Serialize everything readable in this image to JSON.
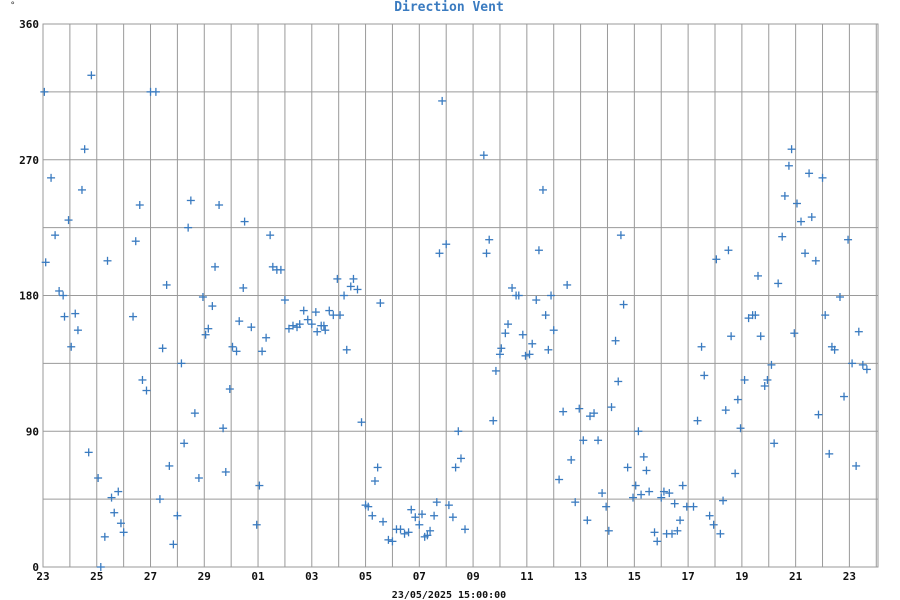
{
  "chart_data": {
    "type": "scatter",
    "title": "Direction Vent",
    "y_unit": "°",
    "xlabel": "23/05/2025 15:00:00",
    "ylim": [
      0,
      360
    ],
    "y_ticks": [
      0,
      90,
      180,
      270,
      360
    ],
    "x_ticks": [
      "23",
      "25",
      "27",
      "29",
      "01",
      "03",
      "05",
      "07",
      "09",
      "11",
      "13",
      "15",
      "17",
      "19",
      "21",
      "23"
    ],
    "grid": true,
    "marker": "+",
    "color": "#3a7bc0",
    "x_day_offsets": [
      0,
      2,
      4,
      6,
      8,
      10,
      12,
      14,
      16,
      18,
      20,
      22,
      24,
      26,
      28,
      30
    ],
    "x_range_days": [
      0,
      31.2
    ],
    "points": [
      [
        0.05,
        315
      ],
      [
        0.1,
        202
      ],
      [
        0.3,
        258
      ],
      [
        0.45,
        220
      ],
      [
        0.6,
        183
      ],
      [
        0.75,
        180
      ],
      [
        0.8,
        166
      ],
      [
        0.95,
        230
      ],
      [
        1.05,
        146
      ],
      [
        1.2,
        168
      ],
      [
        1.3,
        157
      ],
      [
        1.45,
        250
      ],
      [
        1.55,
        277
      ],
      [
        1.7,
        76
      ],
      [
        1.8,
        326
      ],
      [
        2.05,
        59
      ],
      [
        2.15,
        0
      ],
      [
        2.3,
        20
      ],
      [
        2.4,
        203
      ],
      [
        2.55,
        46
      ],
      [
        2.65,
        36
      ],
      [
        2.8,
        50
      ],
      [
        2.9,
        29
      ],
      [
        3.0,
        23
      ],
      [
        3.35,
        166
      ],
      [
        3.45,
        216
      ],
      [
        3.6,
        240
      ],
      [
        3.7,
        124
      ],
      [
        3.85,
        117
      ],
      [
        4.0,
        315
      ],
      [
        4.2,
        315
      ],
      [
        4.35,
        45
      ],
      [
        4.45,
        145
      ],
      [
        4.6,
        187
      ],
      [
        4.7,
        67
      ],
      [
        4.85,
        15
      ],
      [
        5.0,
        34
      ],
      [
        5.15,
        135
      ],
      [
        5.25,
        82
      ],
      [
        5.4,
        225
      ],
      [
        5.5,
        243
      ],
      [
        5.65,
        102
      ],
      [
        5.8,
        59
      ],
      [
        5.95,
        179
      ],
      [
        6.05,
        154
      ],
      [
        6.15,
        158
      ],
      [
        6.3,
        173
      ],
      [
        6.4,
        199
      ],
      [
        6.55,
        240
      ],
      [
        6.7,
        92
      ],
      [
        6.8,
        63
      ],
      [
        6.95,
        118
      ],
      [
        7.05,
        146
      ],
      [
        7.2,
        143
      ],
      [
        7.3,
        163
      ],
      [
        7.45,
        185
      ],
      [
        7.5,
        229
      ],
      [
        7.75,
        159
      ],
      [
        7.95,
        28
      ],
      [
        8.05,
        54
      ],
      [
        8.15,
        143
      ],
      [
        8.3,
        152
      ],
      [
        8.45,
        220
      ],
      [
        8.55,
        199
      ],
      [
        8.7,
        197
      ],
      [
        8.85,
        197
      ],
      [
        9.0,
        177
      ],
      [
        9.15,
        158
      ],
      [
        9.3,
        160
      ],
      [
        9.45,
        159
      ],
      [
        9.55,
        161
      ],
      [
        9.7,
        170
      ],
      [
        9.85,
        164
      ],
      [
        10.0,
        161
      ],
      [
        10.15,
        169
      ],
      [
        10.2,
        156
      ],
      [
        10.35,
        160
      ],
      [
        10.45,
        160
      ],
      [
        10.5,
        157
      ],
      [
        10.65,
        170
      ],
      [
        10.8,
        167
      ],
      [
        10.95,
        191
      ],
      [
        11.05,
        167
      ],
      [
        11.2,
        180
      ],
      [
        11.3,
        144
      ],
      [
        11.45,
        186
      ],
      [
        11.55,
        191
      ],
      [
        11.7,
        184
      ],
      [
        11.85,
        96
      ],
      [
        12.0,
        41
      ],
      [
        12.1,
        40
      ],
      [
        12.25,
        34
      ],
      [
        12.35,
        57
      ],
      [
        12.45,
        66
      ],
      [
        12.55,
        175
      ],
      [
        12.65,
        30
      ],
      [
        12.85,
        18
      ],
      [
        13.0,
        17
      ],
      [
        13.15,
        25
      ],
      [
        13.3,
        25
      ],
      [
        13.45,
        22
      ],
      [
        13.6,
        23
      ],
      [
        13.7,
        38
      ],
      [
        13.85,
        33
      ],
      [
        14.0,
        28
      ],
      [
        14.1,
        35
      ],
      [
        14.2,
        20
      ],
      [
        14.3,
        21
      ],
      [
        14.4,
        24
      ],
      [
        14.55,
        34
      ],
      [
        14.65,
        43
      ],
      [
        14.75,
        208
      ],
      [
        14.85,
        309
      ],
      [
        15.0,
        214
      ],
      [
        15.1,
        41
      ],
      [
        15.25,
        33
      ],
      [
        15.35,
        66
      ],
      [
        15.45,
        90
      ],
      [
        15.55,
        72
      ],
      [
        15.7,
        25
      ],
      [
        16.4,
        273
      ],
      [
        16.5,
        208
      ],
      [
        16.6,
        217
      ],
      [
        16.75,
        97
      ],
      [
        16.85,
        130
      ],
      [
        17.0,
        141
      ],
      [
        17.05,
        145
      ],
      [
        17.2,
        155
      ],
      [
        17.3,
        161
      ],
      [
        17.45,
        185
      ],
      [
        17.6,
        180
      ],
      [
        17.7,
        180
      ],
      [
        17.85,
        154
      ],
      [
        17.95,
        140
      ],
      [
        18.1,
        141
      ],
      [
        18.2,
        148
      ],
      [
        18.35,
        177
      ],
      [
        18.45,
        210
      ],
      [
        18.6,
        250
      ],
      [
        18.7,
        167
      ],
      [
        18.8,
        144
      ],
      [
        18.9,
        180
      ],
      [
        19.0,
        157
      ],
      [
        19.2,
        58
      ],
      [
        19.35,
        103
      ],
      [
        19.5,
        187
      ],
      [
        19.65,
        71
      ],
      [
        19.8,
        43
      ],
      [
        19.95,
        105
      ],
      [
        20.1,
        84
      ],
      [
        20.25,
        31
      ],
      [
        20.35,
        100
      ],
      [
        20.5,
        102
      ],
      [
        20.65,
        84
      ],
      [
        20.8,
        49
      ],
      [
        20.95,
        40
      ],
      [
        21.05,
        24
      ],
      [
        21.15,
        106
      ],
      [
        21.3,
        150
      ],
      [
        21.4,
        123
      ],
      [
        21.5,
        220
      ],
      [
        21.6,
        174
      ],
      [
        21.75,
        66
      ],
      [
        21.95,
        46
      ],
      [
        22.05,
        54
      ],
      [
        22.15,
        90
      ],
      [
        22.25,
        48
      ],
      [
        22.35,
        73
      ],
      [
        22.45,
        64
      ],
      [
        22.55,
        50
      ],
      [
        22.75,
        23
      ],
      [
        22.85,
        17
      ],
      [
        23.0,
        46
      ],
      [
        23.1,
        50
      ],
      [
        23.2,
        22
      ],
      [
        23.3,
        49
      ],
      [
        23.4,
        22
      ],
      [
        23.5,
        42
      ],
      [
        23.6,
        24
      ],
      [
        23.7,
        31
      ],
      [
        23.8,
        54
      ],
      [
        23.95,
        40
      ],
      [
        24.2,
        40
      ],
      [
        24.35,
        97
      ],
      [
        24.5,
        146
      ],
      [
        24.6,
        127
      ],
      [
        24.8,
        34
      ],
      [
        24.95,
        28
      ],
      [
        25.05,
        204
      ],
      [
        25.2,
        22
      ],
      [
        25.3,
        44
      ],
      [
        25.4,
        104
      ],
      [
        25.5,
        210
      ],
      [
        25.6,
        153
      ],
      [
        25.75,
        62
      ],
      [
        25.85,
        111
      ],
      [
        25.95,
        92
      ],
      [
        26.1,
        124
      ],
      [
        26.25,
        165
      ],
      [
        26.4,
        167
      ],
      [
        26.5,
        167
      ],
      [
        26.6,
        193
      ],
      [
        26.7,
        153
      ],
      [
        26.85,
        120
      ],
      [
        26.95,
        124
      ],
      [
        27.1,
        134
      ],
      [
        27.2,
        82
      ],
      [
        27.35,
        188
      ],
      [
        27.5,
        219
      ],
      [
        27.6,
        246
      ],
      [
        27.75,
        266
      ],
      [
        27.85,
        277
      ],
      [
        27.95,
        155
      ],
      [
        28.05,
        241
      ],
      [
        28.2,
        229
      ],
      [
        28.35,
        208
      ],
      [
        28.5,
        261
      ],
      [
        28.6,
        232
      ],
      [
        28.75,
        203
      ],
      [
        28.85,
        101
      ],
      [
        29.0,
        258
      ],
      [
        29.1,
        167
      ],
      [
        29.25,
        75
      ],
      [
        29.35,
        146
      ],
      [
        29.45,
        144
      ],
      [
        29.65,
        179
      ],
      [
        29.8,
        113
      ],
      [
        29.95,
        217
      ],
      [
        30.1,
        135
      ],
      [
        30.25,
        67
      ],
      [
        30.35,
        156
      ],
      [
        30.5,
        134
      ],
      [
        30.65,
        131
      ]
    ]
  }
}
